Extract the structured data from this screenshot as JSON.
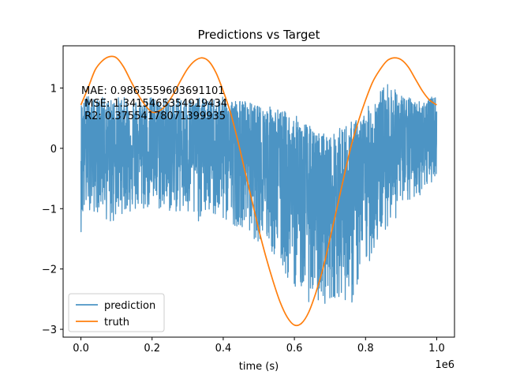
{
  "chart_data": {
    "type": "line",
    "title": "Predictions vs Target",
    "xlabel": "time (s)",
    "ylabel": "",
    "x_offset_label": "1e6",
    "xlim": [
      -50000,
      1050000
    ],
    "ylim": [
      -3.13,
      1.7
    ],
    "xticks": [
      0,
      0.2,
      0.4,
      0.6,
      0.8,
      1.0
    ],
    "xtick_labels": [
      "0.0",
      "0.2",
      "0.4",
      "0.6",
      "0.8",
      "1.0"
    ],
    "yticks": [
      1,
      0,
      -1,
      -2,
      -3
    ],
    "ytick_labels": [
      "1",
      "0",
      "−1",
      "−2",
      "−3"
    ],
    "grid": false,
    "legend_position": "lower-left",
    "annotations": [
      "MAE: 0.9863559603691101",
      " MSE: 1.3415465354919434",
      " R2: 0.37554178071399935"
    ],
    "series": [
      {
        "name": "prediction",
        "color": "#4c94c4",
        "x": [
          0,
          20000,
          40000,
          60000,
          80000,
          100000,
          120000,
          140000,
          160000,
          180000,
          200000,
          220000,
          240000,
          260000,
          280000,
          300000,
          320000,
          340000,
          360000,
          380000,
          400000,
          420000,
          440000,
          460000,
          480000,
          500000,
          520000,
          540000,
          560000,
          580000,
          600000,
          620000,
          640000,
          660000,
          680000,
          700000,
          720000,
          740000,
          760000,
          780000,
          800000,
          820000,
          840000,
          860000,
          880000,
          900000,
          920000,
          940000,
          960000,
          980000,
          1000000
        ],
        "upper": [
          0.75,
          0.9,
          0.8,
          0.85,
          0.8,
          0.85,
          0.85,
          0.8,
          0.8,
          0.85,
          0.85,
          0.8,
          0.85,
          0.8,
          0.85,
          0.85,
          0.8,
          0.85,
          0.8,
          0.85,
          0.85,
          0.85,
          0.8,
          0.8,
          0.75,
          0.7,
          0.7,
          0.7,
          0.65,
          0.6,
          0.55,
          0.5,
          0.4,
          0.25,
          0.3,
          0.2,
          0.3,
          0.4,
          0.45,
          0.5,
          0.6,
          0.85,
          0.95,
          1.1,
          1.0,
          0.9,
          0.85,
          0.8,
          0.8,
          0.85,
          0.85
        ],
        "lower": [
          -1.4,
          -1.0,
          -1.1,
          -1.0,
          -1.35,
          -1.2,
          -1.05,
          -1.1,
          -1.1,
          -1.05,
          -1.0,
          -1.05,
          -1.1,
          -1.05,
          -1.1,
          -1.2,
          -1.3,
          -1.15,
          -1.1,
          -1.2,
          -1.25,
          -1.25,
          -1.3,
          -1.3,
          -1.5,
          -1.55,
          -1.6,
          -1.8,
          -2.0,
          -2.2,
          -2.3,
          -2.35,
          -2.55,
          -2.6,
          -2.6,
          -2.55,
          -2.45,
          -2.5,
          -2.65,
          -2.3,
          -2.0,
          -1.8,
          -1.5,
          -1.3,
          -1.2,
          -1.1,
          -0.95,
          -0.85,
          -0.75,
          -0.6,
          -0.45
        ],
        "center": [
          0.0,
          0.0,
          -0.05,
          -0.05,
          -0.05,
          -0.05,
          -0.05,
          -0.05,
          -0.05,
          -0.05,
          -0.05,
          -0.05,
          -0.05,
          -0.05,
          -0.05,
          -0.05,
          -0.05,
          -0.1,
          -0.1,
          -0.1,
          -0.1,
          -0.1,
          -0.15,
          -0.2,
          -0.25,
          -0.3,
          -0.35,
          -0.45,
          -0.55,
          -0.65,
          -0.75,
          -0.85,
          -1.0,
          -1.1,
          -1.15,
          -1.2,
          -1.15,
          -1.1,
          -1.0,
          -0.85,
          -0.7,
          -0.5,
          -0.35,
          -0.2,
          -0.1,
          -0.05,
          0.0,
          0.05,
          0.05,
          0.1,
          0.1
        ]
      },
      {
        "name": "truth",
        "color": "#ff7f0e",
        "x": [
          0,
          20000,
          40000,
          60000,
          80000,
          100000,
          120000,
          140000,
          160000,
          180000,
          200000,
          220000,
          240000,
          260000,
          280000,
          300000,
          320000,
          340000,
          360000,
          380000,
          400000,
          420000,
          440000,
          460000,
          480000,
          500000,
          520000,
          540000,
          560000,
          580000,
          600000,
          620000,
          640000,
          660000,
          680000,
          700000,
          720000,
          740000,
          760000,
          780000,
          800000,
          820000,
          840000,
          860000,
          880000,
          900000,
          920000,
          940000,
          960000,
          980000,
          1000000
        ],
        "values": [
          0.72,
          1.0,
          1.3,
          1.45,
          1.52,
          1.5,
          1.35,
          1.12,
          0.9,
          0.72,
          0.6,
          0.62,
          0.72,
          0.9,
          1.12,
          1.32,
          1.45,
          1.5,
          1.44,
          1.25,
          0.95,
          0.6,
          0.15,
          -0.35,
          -0.85,
          -1.35,
          -1.8,
          -2.2,
          -2.55,
          -2.8,
          -2.93,
          -2.9,
          -2.72,
          -2.4,
          -2.0,
          -1.5,
          -0.98,
          -0.45,
          0.05,
          0.45,
          0.8,
          1.1,
          1.3,
          1.45,
          1.5,
          1.47,
          1.35,
          1.15,
          0.95,
          0.8,
          0.72
        ]
      }
    ]
  }
}
